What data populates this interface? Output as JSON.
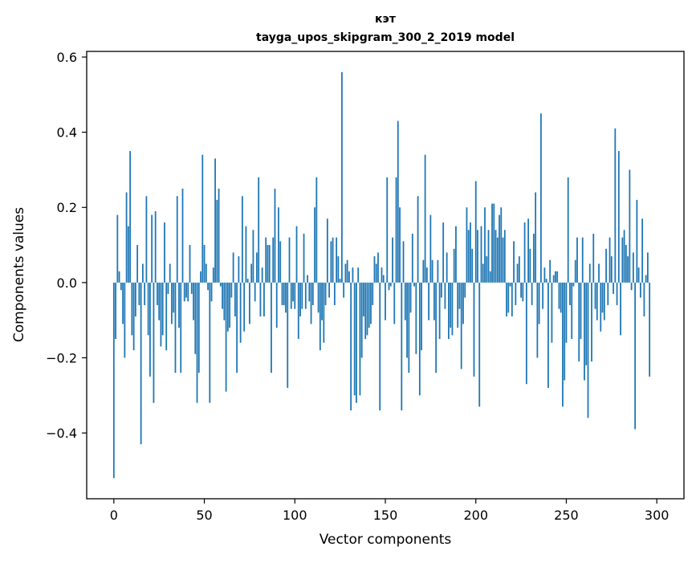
{
  "chart_data": {
    "type": "bar",
    "title": "кэт",
    "subtitle": "tayga_upos_skipgram_300_2_2019 model",
    "xlabel": "Vector components",
    "ylabel": "Components values",
    "xlim": [
      -15,
      315
    ],
    "ylim": [
      -0.575,
      0.615
    ],
    "x_ticks": [
      0,
      50,
      100,
      150,
      200,
      250,
      300
    ],
    "y_ticks": [
      -0.4,
      -0.2,
      0.0,
      0.2,
      0.4,
      0.6
    ],
    "x_tick_labels": [
      "0",
      "50",
      "100",
      "150",
      "200",
      "250",
      "300"
    ],
    "y_tick_labels": [
      "−0.4",
      "−0.2",
      "0.0",
      "0.2",
      "0.4",
      "0.6"
    ],
    "bar_color": "#1f77b4",
    "grid": false,
    "values": [
      -0.52,
      -0.15,
      0.18,
      0.03,
      -0.02,
      -0.11,
      -0.2,
      0.24,
      0.15,
      0.35,
      -0.14,
      -0.18,
      -0.09,
      0.1,
      -0.06,
      -0.43,
      0.05,
      -0.06,
      0.23,
      -0.14,
      -0.25,
      0.18,
      -0.32,
      0.19,
      -0.06,
      -0.1,
      -0.17,
      -0.14,
      0.16,
      -0.18,
      -0.03,
      0.05,
      -0.11,
      -0.08,
      -0.24,
      0.23,
      -0.12,
      -0.24,
      0.25,
      -0.05,
      -0.04,
      -0.05,
      0.1,
      -0.03,
      -0.1,
      -0.19,
      -0.32,
      -0.24,
      0.03,
      0.34,
      0.1,
      0.05,
      -0.02,
      -0.32,
      -0.05,
      0.04,
      0.33,
      0.22,
      0.25,
      -0.01,
      -0.07,
      -0.1,
      -0.29,
      -0.13,
      -0.12,
      -0.04,
      0.08,
      -0.09,
      -0.24,
      0.07,
      -0.16,
      0.23,
      -0.13,
      0.15,
      0.01,
      -0.11,
      0.05,
      0.14,
      -0.05,
      0.08,
      0.28,
      -0.09,
      0.04,
      -0.09,
      0.12,
      0.1,
      0.1,
      -0.24,
      0.12,
      0.25,
      -0.12,
      0.2,
      0.11,
      -0.06,
      -0.06,
      -0.08,
      -0.28,
      0.12,
      -0.07,
      -0.05,
      -0.07,
      0.15,
      -0.15,
      -0.09,
      -0.07,
      0.13,
      -0.07,
      0.02,
      -0.05,
      -0.11,
      -0.06,
      0.2,
      0.28,
      -0.08,
      -0.18,
      -0.1,
      -0.16,
      -0.06,
      0.17,
      -0.04,
      0.11,
      0.12,
      -0.06,
      0.12,
      0.07,
      0.01,
      0.56,
      -0.04,
      0.05,
      0.06,
      0.03,
      -0.34,
      0.04,
      -0.3,
      -0.32,
      0.04,
      -0.3,
      -0.2,
      -0.09,
      -0.15,
      -0.14,
      -0.12,
      -0.11,
      -0.06,
      0.07,
      0.05,
      0.08,
      -0.34,
      0.04,
      0.02,
      -0.1,
      0.28,
      -0.02,
      -0.01,
      0.12,
      -0.11,
      0.28,
      0.43,
      0.2,
      -0.34,
      0.11,
      -0.1,
      -0.2,
      -0.24,
      -0.08,
      0.13,
      -0.01,
      -0.19,
      0.23,
      -0.3,
      -0.18,
      0.06,
      0.34,
      0.04,
      -0.1,
      0.18,
      0.06,
      -0.1,
      -0.24,
      0.06,
      -0.15,
      -0.04,
      0.16,
      -0.07,
      0.08,
      -0.15,
      -0.12,
      -0.14,
      0.09,
      0.15,
      -0.12,
      -0.07,
      -0.23,
      -0.11,
      -0.04,
      0.2,
      0.14,
      0.16,
      0.09,
      -0.25,
      0.27,
      0.14,
      -0.33,
      0.15,
      0.05,
      0.2,
      0.07,
      0.14,
      0.03,
      0.21,
      0.21,
      0.14,
      0.12,
      0.18,
      0.2,
      0.12,
      0.14,
      -0.09,
      -0.08,
      -0.01,
      -0.09,
      0.11,
      -0.06,
      0.05,
      0.07,
      -0.04,
      -0.05,
      0.16,
      -0.27,
      0.17,
      0.09,
      -0.06,
      0.13,
      0.24,
      -0.2,
      -0.11,
      0.45,
      -0.07,
      0.04,
      0.01,
      -0.28,
      0.06,
      -0.16,
      0.02,
      0.03,
      0.03,
      -0.07,
      -0.08,
      -0.33,
      -0.26,
      -0.16,
      0.28,
      -0.06,
      -0.15,
      -0.01,
      0.06,
      0.12,
      -0.21,
      -0.15,
      0.12,
      -0.26,
      -0.22,
      -0.36,
      0.05,
      -0.21,
      0.13,
      -0.07,
      -0.1,
      0.05,
      -0.13,
      -0.08,
      -0.1,
      0.09,
      -0.06,
      0.12,
      0.07,
      -0.03,
      0.41,
      -0.06,
      0.35,
      -0.14,
      0.12,
      0.14,
      0.1,
      0.07,
      0.3,
      -0.02,
      0.08,
      -0.39,
      0.22,
      0.04,
      -0.04,
      0.17,
      -0.09,
      0.02,
      0.08,
      -0.25
    ]
  }
}
